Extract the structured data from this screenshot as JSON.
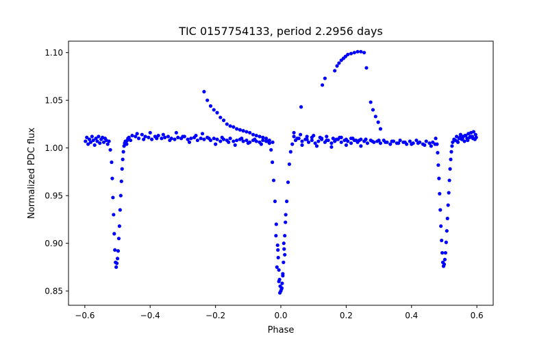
{
  "chart_data": {
    "type": "scatter",
    "title": "TIC 0157754133, period 2.2956 days",
    "xlabel": "Phase",
    "ylabel": "Normalized PDC flux",
    "xlim": [
      -0.65,
      0.65
    ],
    "ylim": [
      0.835,
      1.112
    ],
    "xticks": [
      -0.6,
      -0.4,
      -0.2,
      0.0,
      0.2,
      0.4,
      0.6
    ],
    "xtick_labels": [
      "−0.6",
      "−0.4",
      "−0.2",
      "0.0",
      "0.2",
      "0.4",
      "0.6"
    ],
    "yticks": [
      0.85,
      0.9,
      0.95,
      1.0,
      1.05,
      1.1
    ],
    "ytick_labels": [
      "0.85",
      "0.90",
      "0.95",
      "1.00",
      "1.05",
      "1.10"
    ],
    "grid": false,
    "marker_color": "#0000ff",
    "series": [
      {
        "name": "",
        "x": [
          -0.598,
          -0.594,
          -0.59,
          -0.586,
          -0.582,
          -0.578,
          -0.574,
          -0.57,
          -0.566,
          -0.562,
          -0.558,
          -0.554,
          -0.55,
          -0.546,
          -0.542,
          -0.538,
          -0.534,
          -0.53,
          -0.526,
          -0.522,
          -0.518,
          -0.516,
          -0.514,
          -0.512,
          -0.51,
          -0.508,
          -0.506,
          -0.504,
          -0.502,
          -0.5,
          -0.498,
          -0.496,
          -0.494,
          -0.492,
          -0.49,
          -0.488,
          -0.486,
          -0.484,
          -0.482,
          -0.48,
          -0.478,
          -0.476,
          -0.474,
          -0.472,
          -0.47,
          -0.468,
          -0.465,
          -0.455,
          -0.445,
          -0.435,
          -0.425,
          -0.415,
          -0.405,
          -0.395,
          -0.385,
          -0.375,
          -0.365,
          -0.355,
          -0.345,
          -0.335,
          -0.325,
          -0.315,
          -0.305,
          -0.295,
          -0.285,
          -0.275,
          -0.265,
          -0.255,
          -0.245,
          -0.235,
          -0.225,
          -0.215,
          -0.205,
          -0.195,
          -0.185,
          -0.175,
          -0.165,
          -0.155,
          -0.145,
          -0.135,
          -0.125,
          -0.115,
          -0.105,
          -0.095,
          -0.085,
          -0.075,
          -0.065,
          -0.055,
          -0.045,
          -0.035,
          -0.025,
          -0.46,
          -0.44,
          -0.42,
          -0.4,
          -0.38,
          -0.36,
          -0.34,
          -0.32,
          -0.3,
          -0.28,
          -0.26,
          -0.24,
          -0.22,
          -0.2,
          -0.18,
          -0.16,
          -0.14,
          -0.12,
          -0.1,
          -0.08,
          -0.06,
          -0.04,
          -0.235,
          -0.225,
          -0.215,
          -0.205,
          -0.195,
          -0.185,
          -0.175,
          -0.165,
          -0.155,
          -0.145,
          -0.135,
          -0.125,
          -0.115,
          -0.105,
          -0.095,
          -0.085,
          -0.075,
          -0.065,
          -0.055,
          -0.045,
          -0.035,
          -0.03,
          -0.026,
          -0.022,
          -0.018,
          -0.014,
          -0.01,
          -0.008,
          -0.006,
          -0.004,
          -0.002,
          0.0,
          0.002,
          0.004,
          0.006,
          0.008,
          0.01,
          0.012,
          0.014,
          0.018,
          0.022,
          0.026,
          0.03,
          -0.012,
          -0.006,
          -0.003,
          0.003,
          0.006,
          0.012,
          -0.015,
          0.015,
          -0.009,
          0.009,
          0.035,
          0.045,
          0.055,
          0.065,
          0.075,
          0.085,
          0.095,
          0.105,
          0.115,
          0.125,
          0.135,
          0.145,
          0.155,
          0.165,
          0.175,
          0.185,
          0.195,
          0.205,
          0.215,
          0.225,
          0.235,
          0.245,
          0.255,
          0.265,
          0.275,
          0.285,
          0.295,
          0.305,
          0.315,
          0.325,
          0.335,
          0.345,
          0.355,
          0.365,
          0.375,
          0.385,
          0.395,
          0.405,
          0.415,
          0.425,
          0.435,
          0.445,
          0.455,
          0.465,
          0.472,
          0.04,
          0.06,
          0.08,
          0.1,
          0.12,
          0.14,
          0.16,
          0.18,
          0.2,
          0.22,
          0.24,
          0.26,
          0.28,
          0.3,
          0.32,
          0.34,
          0.36,
          0.38,
          0.4,
          0.42,
          0.44,
          0.46,
          0.04,
          0.05,
          0.065,
          0.08,
          0.095,
          0.11,
          0.125,
          0.14,
          0.155,
          0.17,
          0.185,
          0.2,
          0.215,
          0.23,
          0.245,
          0.26,
          0.062,
          0.127,
          0.135,
          0.165,
          0.172,
          0.178,
          0.185,
          0.192,
          0.198,
          0.205,
          0.215,
          0.225,
          0.235,
          0.245,
          0.255,
          0.262,
          0.275,
          0.282,
          0.29,
          0.298,
          0.305,
          0.474,
          0.478,
          0.48,
          0.482,
          0.484,
          0.486,
          0.488,
          0.49,
          0.492,
          0.494,
          0.496,
          0.498,
          0.5,
          0.502,
          0.504,
          0.506,
          0.508,
          0.51,
          0.512,
          0.514,
          0.516,
          0.518,
          0.52,
          0.522,
          0.524,
          0.526,
          0.53,
          0.534,
          0.538,
          0.542,
          0.546,
          0.55,
          0.554,
          0.558,
          0.562,
          0.566,
          0.57,
          0.574,
          0.578,
          0.582,
          0.586,
          0.59,
          0.594,
          0.598,
          0.596,
          0.588,
          0.58,
          0.572,
          0.564,
          0.556,
          0.548,
          0.54
        ],
        "y": [
          1.007,
          1.011,
          1.004,
          1.009,
          1.006,
          1.012,
          1.008,
          1.003,
          1.01,
          1.007,
          1.012,
          1.005,
          1.009,
          1.011,
          1.006,
          1.01,
          1.008,
          1.004,
          1.007,
          0.998,
          0.985,
          0.968,
          0.948,
          0.93,
          0.91,
          0.893,
          0.88,
          0.875,
          0.879,
          0.884,
          0.892,
          0.905,
          0.918,
          0.935,
          0.95,
          0.965,
          0.978,
          0.988,
          0.996,
          1.002,
          1.005,
          1.007,
          1.006,
          1.004,
          1.008,
          1.01,
          1.011,
          1.013,
          1.012,
          1.01,
          1.014,
          1.012,
          1.011,
          1.009,
          1.012,
          1.013,
          1.01,
          1.011,
          1.012,
          1.01,
          1.009,
          1.011,
          1.01,
          1.012,
          1.009,
          1.01,
          1.011,
          1.008,
          1.01,
          1.009,
          1.011,
          1.008,
          1.01,
          1.009,
          1.007,
          1.009,
          1.008,
          1.01,
          1.007,
          1.008,
          1.009,
          1.007,
          1.008,
          1.006,
          1.008,
          1.007,
          1.006,
          1.008,
          1.007,
          1.005,
          1.006,
          1.008,
          1.015,
          1.009,
          1.016,
          1.01,
          1.014,
          1.008,
          1.016,
          1.012,
          1.006,
          1.013,
          1.015,
          1.01,
          1.004,
          1.011,
          1.006,
          1.003,
          1.01,
          1.005,
          1.009,
          1.004,
          1.007,
          1.059,
          1.05,
          1.044,
          1.04,
          1.037,
          1.032,
          1.029,
          1.025,
          1.023,
          1.022,
          1.02,
          1.019,
          1.018,
          1.017,
          1.016,
          1.014,
          1.013,
          1.012,
          1.011,
          1.01,
          1.008,
          0.998,
          0.985,
          0.966,
          0.944,
          0.92,
          0.898,
          0.885,
          0.872,
          0.862,
          0.855,
          0.85,
          0.852,
          0.858,
          0.868,
          0.88,
          0.894,
          0.908,
          0.922,
          0.944,
          0.964,
          0.983,
          0.996,
          0.875,
          0.86,
          0.848,
          0.853,
          0.866,
          0.888,
          0.908,
          0.93,
          0.893,
          0.9,
          1.004,
          1.008,
          1.01,
          1.007,
          1.009,
          1.006,
          1.008,
          1.005,
          1.007,
          1.009,
          1.006,
          1.008,
          1.005,
          1.007,
          1.009,
          1.006,
          1.008,
          1.007,
          1.005,
          1.008,
          1.006,
          1.009,
          1.007,
          1.005,
          1.008,
          1.006,
          1.007,
          1.005,
          1.008,
          1.006,
          1.004,
          1.007,
          1.005,
          1.008,
          1.006,
          1.004,
          1.007,
          1.005,
          1.008,
          1.006,
          1.004,
          1.007,
          1.005,
          1.006,
          1.004,
          1.016,
          1.014,
          1.012,
          1.013,
          1.011,
          1.012,
          1.01,
          1.011,
          1.009,
          1.01,
          1.008,
          1.009,
          1.007,
          1.008,
          1.006,
          1.007,
          1.005,
          1.006,
          1.004,
          1.005,
          1.003,
          1.002,
          1.012,
          1.01,
          1.003,
          1.009,
          1.011,
          1.002,
          1.01,
          1.008,
          1.001,
          1.009,
          1.011,
          1.003,
          1.01,
          1.008,
          1.002,
          1.009,
          1.043,
          1.066,
          1.073,
          1.081,
          1.086,
          1.089,
          1.092,
          1.094,
          1.096,
          1.098,
          1.099,
          1.1,
          1.101,
          1.101,
          1.1,
          1.084,
          1.048,
          1.04,
          1.033,
          1.027,
          1.02,
          1.01,
          1.004,
          0.995,
          0.982,
          0.968,
          0.952,
          0.935,
          0.918,
          0.903,
          0.89,
          0.88,
          0.876,
          0.878,
          0.883,
          0.89,
          0.901,
          0.913,
          0.926,
          0.94,
          0.953,
          0.966,
          0.978,
          0.988,
          0.996,
          1.002,
          1.006,
          1.009,
          1.008,
          1.012,
          1.006,
          1.01,
          1.014,
          1.009,
          1.012,
          1.007,
          1.013,
          1.01,
          1.015,
          1.011,
          1.016,
          1.012,
          1.017,
          1.009,
          1.011,
          1.014,
          1.01,
          1.012,
          1.008,
          1.013,
          1.01,
          1.011,
          1.007
        ]
      }
    ]
  }
}
